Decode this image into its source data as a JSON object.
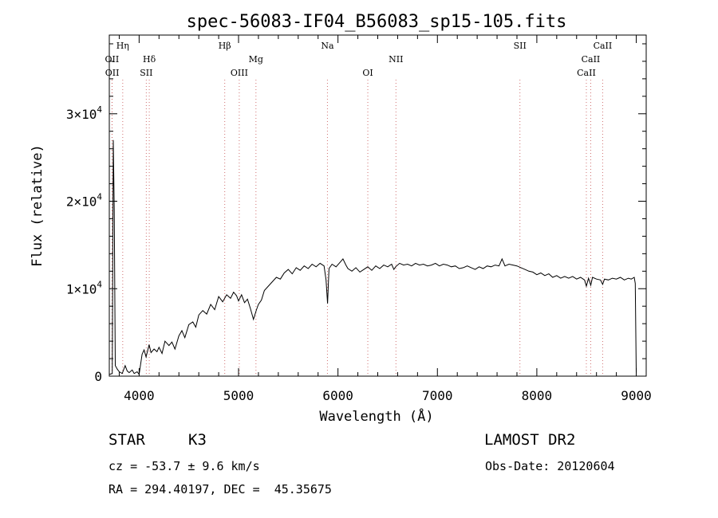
{
  "chart_data": {
    "type": "line",
    "title": "spec-56083-IF04_B56083_sp15-105.fits",
    "xlabel": "Wavelength (Å)",
    "ylabel": "Flux (relative)",
    "xlim": [
      3700,
      9100
    ],
    "ylim": [
      0,
      39000
    ],
    "xticks": [
      {
        "value": 4000,
        "label": "4000"
      },
      {
        "value": 5000,
        "label": "5000"
      },
      {
        "value": 6000,
        "label": "6000"
      },
      {
        "value": 7000,
        "label": "7000"
      },
      {
        "value": 8000,
        "label": "8000"
      },
      {
        "value": 9000,
        "label": "9000"
      }
    ],
    "yticks": [
      {
        "value": 0,
        "label": "0"
      },
      {
        "value": 10000,
        "label": "1×10",
        "exp": "4"
      },
      {
        "value": 20000,
        "label": "2×10",
        "exp": "4"
      },
      {
        "value": 30000,
        "label": "3×10",
        "exp": "4"
      }
    ],
    "spectral_lines": [
      {
        "name": "Hη",
        "wavelength": 3835,
        "row": 0
      },
      {
        "name": "OII",
        "wavelength": 3727,
        "row": 1
      },
      {
        "name": "OII",
        "wavelength": 3729,
        "row": 2
      },
      {
        "name": "Hδ",
        "wavelength": 4102,
        "row": 1
      },
      {
        "name": "SII",
        "wavelength": 4072,
        "row": 2
      },
      {
        "name": "Hβ",
        "wavelength": 4861,
        "row": 0
      },
      {
        "name": "OIII",
        "wavelength": 5007,
        "row": 2
      },
      {
        "name": "Mg",
        "wavelength": 5175,
        "row": 1
      },
      {
        "name": "Na",
        "wavelength": 5894,
        "row": 0
      },
      {
        "name": "OI",
        "wavelength": 6300,
        "row": 2
      },
      {
        "name": "NII",
        "wavelength": 6583,
        "row": 1
      },
      {
        "name": "SII",
        "wavelength": 7830,
        "row": 0
      },
      {
        "name": "CaII",
        "wavelength": 8662,
        "row": 0
      },
      {
        "name": "CaII",
        "wavelength": 8542,
        "row": 1
      },
      {
        "name": "CaII",
        "wavelength": 8498,
        "row": 2
      }
    ],
    "series": [
      {
        "x": [
          3700,
          3730,
          3740,
          3750,
          3760,
          3780,
          3800,
          3830,
          3860,
          3880,
          3900,
          3930,
          3950,
          3980,
          4000,
          4030,
          4050,
          4070,
          4100,
          4120,
          4150,
          4180,
          4200,
          4230,
          4260,
          4300,
          4330,
          4360,
          4400,
          4430,
          4460,
          4500,
          4540,
          4570,
          4600,
          4640,
          4680,
          4720,
          4760,
          4800,
          4840,
          4880,
          4920,
          4950,
          4980,
          5000,
          5030,
          5060,
          5090,
          5120,
          5150,
          5180,
          5200,
          5230,
          5260,
          5300,
          5340,
          5380,
          5420,
          5460,
          5500,
          5540,
          5580,
          5620,
          5660,
          5700,
          5740,
          5780,
          5820,
          5860,
          5880,
          5895,
          5910,
          5940,
          5980,
          6020,
          6050,
          6080,
          6100,
          6140,
          6180,
          6220,
          6260,
          6300,
          6340,
          6380,
          6420,
          6460,
          6500,
          6540,
          6562,
          6580,
          6620,
          6660,
          6700,
          6740,
          6780,
          6820,
          6860,
          6900,
          6940,
          6980,
          7020,
          7060,
          7100,
          7140,
          7180,
          7220,
          7260,
          7300,
          7340,
          7380,
          7420,
          7460,
          7500,
          7540,
          7580,
          7620,
          7650,
          7680,
          7720,
          7760,
          7800,
          7840,
          7880,
          7920,
          7960,
          8000,
          8040,
          8080,
          8120,
          8160,
          8200,
          8240,
          8280,
          8320,
          8360,
          8400,
          8440,
          8480,
          8498,
          8520,
          8542,
          8560,
          8600,
          8640,
          8662,
          8680,
          8720,
          8760,
          8800,
          8840,
          8880,
          8920,
          8950,
          8980,
          8990,
          9000
        ],
        "y": [
          200,
          300,
          27000,
          19000,
          1200,
          800,
          500,
          300,
          1200,
          600,
          400,
          700,
          300,
          500,
          200,
          2500,
          3000,
          2200,
          3600,
          2700,
          3100,
          2800,
          3300,
          2600,
          4000,
          3500,
          3900,
          3100,
          4600,
          5200,
          4400,
          5900,
          6200,
          5600,
          7000,
          7500,
          7100,
          8200,
          7600,
          9100,
          8500,
          9300,
          8900,
          9600,
          9200,
          8600,
          9300,
          8400,
          8800,
          7700,
          6500,
          7600,
          8200,
          8700,
          9800,
          10300,
          10800,
          11300,
          11100,
          11800,
          12200,
          11700,
          12400,
          12100,
          12600,
          12300,
          12800,
          12500,
          12900,
          12600,
          11000,
          8300,
          12300,
          12800,
          12500,
          13000,
          13400,
          12700,
          12300,
          12000,
          12400,
          11900,
          12200,
          12500,
          12100,
          12600,
          12300,
          12700,
          12500,
          12800,
          12200,
          12500,
          12900,
          12700,
          12800,
          12600,
          12900,
          12700,
          12800,
          12600,
          12700,
          12900,
          12600,
          12800,
          12700,
          12500,
          12600,
          12300,
          12400,
          12600,
          12400,
          12200,
          12500,
          12300,
          12600,
          12500,
          12700,
          12600,
          13400,
          12600,
          12800,
          12700,
          12600,
          12400,
          12200,
          12000,
          11900,
          11600,
          11800,
          11500,
          11700,
          11300,
          11500,
          11200,
          11400,
          11200,
          11400,
          11100,
          11300,
          11000,
          10300,
          11200,
          10400,
          11300,
          11100,
          11000,
          10500,
          11100,
          11000,
          11200,
          11100,
          11300,
          11000,
          11200,
          11100,
          11300,
          10600,
          400
        ]
      }
    ]
  },
  "info": {
    "object_type": "STAR",
    "subclass": "K3",
    "survey": "LAMOST DR2",
    "cz": "cz = -53.7 ± 9.6 km/s",
    "obs_date": "Obs-Date: 20120604",
    "coords": "RA = 294.40197, DEC =  45.35675"
  }
}
